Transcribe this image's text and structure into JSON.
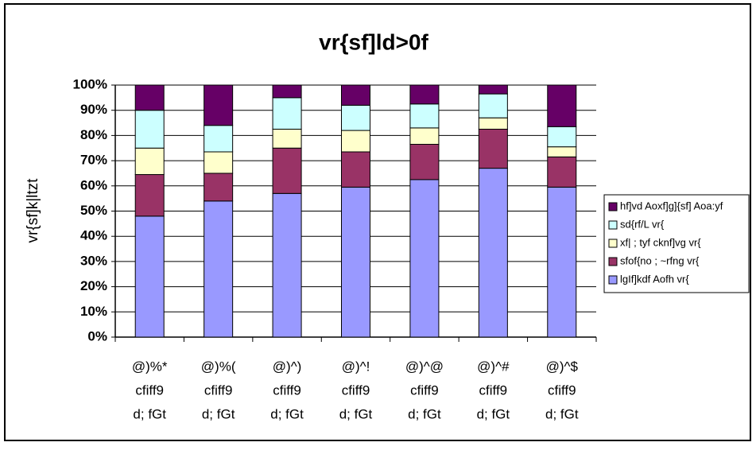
{
  "chart_data": {
    "type": "stacked_bar",
    "title": "vr{sf]ld>0f",
    "y_label": "vr{sf]k|ltzt",
    "categories": [
      [
        "@)%*",
        "cfiff9",
        "d; fGt"
      ],
      [
        "@)%(",
        "cfiff9",
        "d; fGt"
      ],
      [
        "@)^)",
        "cfiff9",
        "d; fGt"
      ],
      [
        "@)^!",
        "cfiff9",
        "d; fGt"
      ],
      [
        "@)^@",
        "cfiff9",
        "d; fGt"
      ],
      [
        "@)^#",
        "cfiff9",
        "d; fGt"
      ],
      [
        "@)^$",
        "cfiff9",
        "d; fGt"
      ]
    ],
    "series": [
      {
        "name": "lgIf]kdf Aofh vr{",
        "color": "#9999ff",
        "values": [
          48,
          54,
          57,
          59.5,
          62.5,
          67,
          59.5
        ]
      },
      {
        "name": "sfof{no ; ~rfng vr{",
        "color": "#993366",
        "values": [
          16.5,
          11,
          18,
          14,
          14,
          15.5,
          12
        ]
      },
      {
        "name": "xf| ; tyf cknf]vg vr{",
        "color": "#ffffcc",
        "values": [
          10.5,
          8.5,
          7.5,
          8.5,
          6.5,
          4.5,
          4
        ]
      },
      {
        "name": "sd{rf/L vr{",
        "color": "#ccffff",
        "values": [
          15,
          10.5,
          12.5,
          10,
          9.5,
          9.5,
          8
        ]
      },
      {
        "name": "hf]vd Aoxf]g]{sf] Aoa:yf",
        "color": "#660066",
        "values": [
          10,
          16,
          5,
          8,
          7.5,
          3.5,
          16.5
        ]
      }
    ],
    "ylim": [
      0,
      100
    ],
    "yticks": [
      {
        "value": 0,
        "label": "0%"
      },
      {
        "value": 10,
        "label": "10%"
      },
      {
        "value": 20,
        "label": "20%"
      },
      {
        "value": 30,
        "label": "30%"
      },
      {
        "value": 40,
        "label": "40%"
      },
      {
        "value": 50,
        "label": "50%"
      },
      {
        "value": 60,
        "label": "60%"
      },
      {
        "value": 70,
        "label": "70%"
      },
      {
        "value": 80,
        "label": "80%"
      },
      {
        "value": 90,
        "label": "90%"
      },
      {
        "value": 100,
        "label": "100%"
      }
    ],
    "grid": true,
    "legend": "right"
  }
}
